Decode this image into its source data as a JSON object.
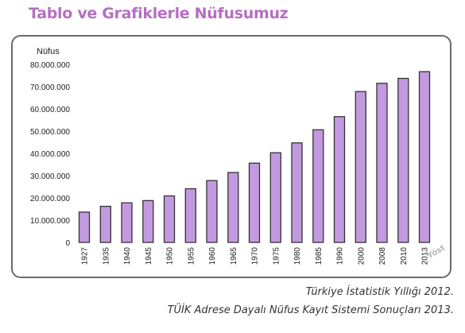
{
  "page": {
    "title": "Tablo ve Grafiklerle Nüfusumuz",
    "title_color": "#b56fc2",
    "watermark": "Yöst"
  },
  "sources": [
    "Türkiye İstatistik Yıllığı 2012.",
    "TÜİK Adrese Dayalı Nüfus Kayıt Sistemi Sonuçları 2013."
  ],
  "chart_data": {
    "type": "bar",
    "title": "",
    "ylabel": "Nüfus",
    "xlabel": "",
    "ylim": [
      0,
      80000000
    ],
    "yticks": [
      0,
      10000000,
      20000000,
      30000000,
      40000000,
      50000000,
      60000000,
      70000000,
      80000000
    ],
    "ytick_labels": [
      "0",
      "10.000.000",
      "20.000.000",
      "30.000.000",
      "40.000.000",
      "50.000.000",
      "60.000.000",
      "70.000.000",
      "80.000.000"
    ],
    "categories": [
      "1927",
      "1935",
      "1940",
      "1945",
      "1950",
      "1955",
      "1960",
      "1965",
      "1970",
      "1975",
      "1980",
      "1985",
      "1990",
      "2000",
      "2008",
      "2010",
      "2013"
    ],
    "values": [
      13600000,
      16200000,
      17800000,
      18800000,
      20900000,
      24100000,
      27800000,
      31400000,
      35600000,
      40300000,
      44700000,
      50600000,
      56500000,
      67800000,
      71500000,
      73700000,
      76700000
    ],
    "grid": false,
    "bar_color": "#c39ae0",
    "bar_edge_color": "#333333"
  }
}
